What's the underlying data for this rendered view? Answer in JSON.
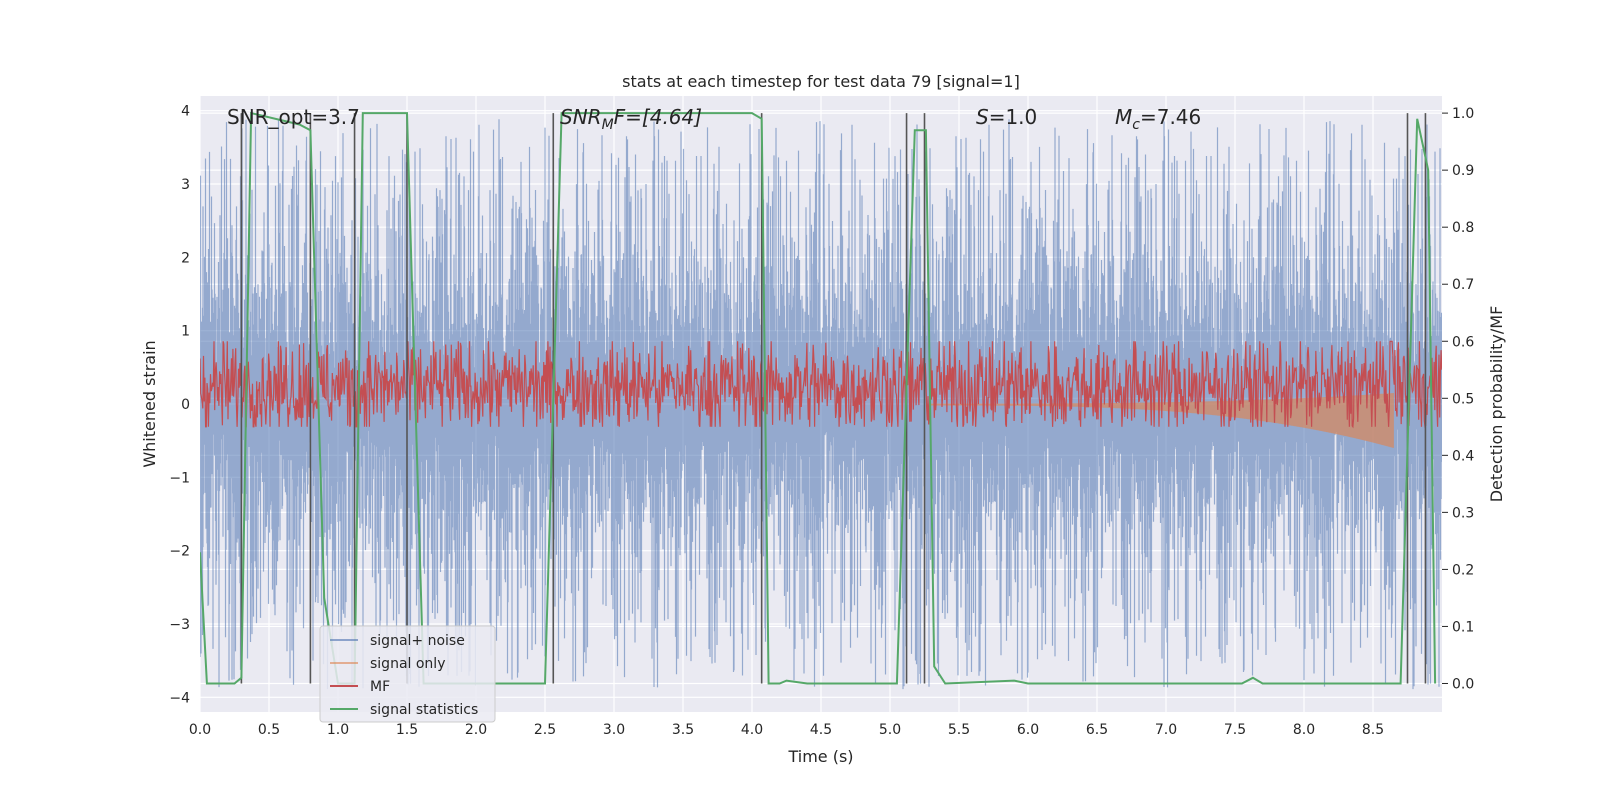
{
  "chart_data": {
    "type": "line",
    "title": "stats at each timestep for test data 79 [signal=1]",
    "xlabel": "Time (s)",
    "ylabel": "Whitened strain",
    "ylabel_right": "Detection probability/MF",
    "xlim": [
      0.0,
      9.0
    ],
    "ylim": [
      -4.2,
      4.2
    ],
    "ylim_right": [
      -0.05,
      1.03
    ],
    "x_ticks": [
      0.0,
      0.5,
      1.0,
      1.5,
      2.0,
      2.5,
      3.0,
      3.5,
      4.0,
      4.5,
      5.0,
      5.5,
      6.0,
      6.5,
      7.0,
      7.5,
      8.0,
      8.5
    ],
    "x_tick_labels": [
      "0.0",
      "0.5",
      "1.0",
      "1.5",
      "2.0",
      "2.5",
      "3.0",
      "3.5",
      "4.0",
      "4.5",
      "5.0",
      "5.5",
      "6.0",
      "6.5",
      "7.0",
      "7.5",
      "8.0",
      "8.5"
    ],
    "y_ticks": [
      -4,
      -3,
      -2,
      -1,
      0,
      1,
      2,
      3,
      4
    ],
    "y_tick_labels": [
      "−4",
      "−3",
      "−2",
      "−1",
      "0",
      "1",
      "2",
      "3",
      "4"
    ],
    "y_ticks_right": [
      0.0,
      0.1,
      0.2,
      0.3,
      0.4,
      0.5,
      0.6,
      0.7,
      0.8,
      0.9,
      1.0
    ],
    "y_tick_labels_right": [
      "0.0",
      "0.1",
      "0.2",
      "0.3",
      "0.4",
      "0.5",
      "0.6",
      "0.7",
      "0.8",
      "0.9",
      "1.0"
    ],
    "grid": true,
    "legend_position": "lower-left",
    "annotations": {
      "snr_opt": "SNR_opt=3.7",
      "snr_mf_prefix": "SNR",
      "snr_mf_sub": "M",
      "snr_mf_rest": "F=[4.64]",
      "s_italic": "S",
      "s_rest": "=1.0",
      "mc_italic": "M",
      "mc_sub": "c",
      "mc_rest": "=7.46"
    },
    "vertical_markers": [
      0.3,
      0.8,
      1.12,
      1.5,
      2.56,
      4.07,
      5.12,
      5.25,
      8.75,
      8.88
    ],
    "series": [
      {
        "name": "signal+ noise",
        "color": "#4c72b0",
        "noise_std": 1.2,
        "spike_max": 3.9
      },
      {
        "name": "signal only",
        "color": "#dd8452",
        "chirp_start": 5.3,
        "chirp_end": 8.65,
        "amp_start": 0.02,
        "amp_end": 0.6
      },
      {
        "name": "MF",
        "color": "#c44e52",
        "baseline": 0.52,
        "spread": 0.07,
        "peak_time": 8.63,
        "peak_value": 0.62
      },
      {
        "name": "signal statistics",
        "color": "#55a868",
        "points": [
          [
            0.0,
            0.23
          ],
          [
            0.05,
            0.0
          ],
          [
            0.25,
            0.0
          ],
          [
            0.3,
            0.01
          ],
          [
            0.37,
            1.0
          ],
          [
            0.72,
            0.98
          ],
          [
            0.8,
            0.97
          ],
          [
            0.9,
            0.15
          ],
          [
            1.0,
            0.0
          ],
          [
            1.12,
            0.0
          ],
          [
            1.18,
            1.0
          ],
          [
            1.5,
            1.0
          ],
          [
            1.62,
            0.0
          ],
          [
            2.5,
            0.0
          ],
          [
            2.62,
            1.0
          ],
          [
            4.0,
            1.0
          ],
          [
            4.07,
            0.99
          ],
          [
            4.12,
            0.0
          ],
          [
            4.2,
            0.0
          ],
          [
            4.25,
            0.005
          ],
          [
            4.4,
            0.0
          ],
          [
            5.05,
            0.0
          ],
          [
            5.18,
            0.97
          ],
          [
            5.26,
            0.97
          ],
          [
            5.32,
            0.03
          ],
          [
            5.4,
            0.0
          ],
          [
            5.9,
            0.005
          ],
          [
            6.0,
            0.0
          ],
          [
            7.55,
            0.0
          ],
          [
            7.63,
            0.01
          ],
          [
            7.7,
            0.0
          ],
          [
            8.7,
            0.0
          ],
          [
            8.82,
            0.99
          ],
          [
            8.9,
            0.9
          ],
          [
            8.95,
            0.0
          ]
        ]
      }
    ]
  }
}
